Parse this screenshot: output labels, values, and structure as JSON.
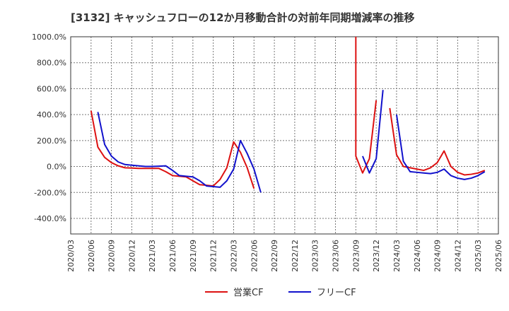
{
  "chart_data": {
    "type": "line",
    "title": "[3132]  キャッシュフローの12か月移動合計の対前年同期増減率の推移",
    "xlabel": "",
    "ylabel": "",
    "ylim": [
      -520,
      1000
    ],
    "yticks": [
      1000,
      800,
      600,
      400,
      200,
      0,
      -200,
      -400
    ],
    "ytick_labels": [
      "1000.0%",
      "800.0%",
      "600.0%",
      "400.0%",
      "200.0%",
      "0.0%",
      "-200.0%",
      "-400.0%"
    ],
    "xticks": [
      "2020/03",
      "2020/06",
      "2020/09",
      "2020/12",
      "2021/03",
      "2021/06",
      "2021/09",
      "2021/12",
      "2022/03",
      "2022/06",
      "2022/09",
      "2022/12",
      "2023/03",
      "2023/06",
      "2023/09",
      "2023/12",
      "2024/03",
      "2024/06",
      "2024/09",
      "2024/12",
      "2025/03",
      "2025/06"
    ],
    "grid": true,
    "legend_position": "bottom-center",
    "series": [
      {
        "name": "営業CF",
        "color": "#dd1111",
        "points": [
          [
            3,
            430
          ],
          [
            4,
            150
          ],
          [
            5,
            70
          ],
          [
            6,
            30
          ],
          [
            7,
            5
          ],
          [
            8,
            -10
          ],
          [
            9,
            -12
          ],
          [
            10,
            -15
          ],
          [
            11,
            -15
          ],
          [
            12,
            -15
          ],
          [
            13,
            -15
          ],
          [
            14,
            -40
          ],
          [
            15,
            -70
          ],
          [
            16,
            -75
          ],
          [
            17,
            -80
          ],
          [
            18,
            -110
          ],
          [
            19,
            -140
          ],
          [
            20,
            -145
          ],
          [
            21,
            -150
          ],
          [
            22,
            -100
          ],
          [
            23,
            -10
          ],
          [
            24,
            190
          ],
          [
            25,
            110
          ],
          [
            26,
            -10
          ],
          [
            27,
            -170
          ],
          null,
          [
            42,
            1000
          ],
          [
            42,
            80
          ],
          [
            43,
            -50
          ],
          [
            44,
            60
          ],
          [
            45,
            510
          ],
          null,
          [
            47,
            450
          ],
          [
            48,
            90
          ],
          [
            49,
            0
          ],
          [
            50,
            -10
          ],
          [
            51,
            -20
          ],
          [
            52,
            -30
          ],
          [
            53,
            -10
          ],
          [
            54,
            30
          ],
          [
            55,
            120
          ],
          [
            56,
            0
          ],
          [
            57,
            -45
          ],
          [
            58,
            -65
          ],
          [
            59,
            -60
          ],
          [
            60,
            -50
          ],
          [
            61,
            -30
          ]
        ]
      },
      {
        "name": "フリーCF",
        "color": "#1111cc",
        "points": [
          [
            4,
            420
          ],
          [
            5,
            170
          ],
          [
            6,
            80
          ],
          [
            7,
            35
          ],
          [
            8,
            15
          ],
          [
            9,
            10
          ],
          [
            10,
            5
          ],
          [
            11,
            0
          ],
          [
            12,
            0
          ],
          [
            13,
            2
          ],
          [
            14,
            5
          ],
          [
            15,
            -30
          ],
          [
            16,
            -70
          ],
          [
            17,
            -75
          ],
          [
            18,
            -80
          ],
          [
            19,
            -110
          ],
          [
            20,
            -150
          ],
          [
            21,
            -155
          ],
          [
            22,
            -160
          ],
          [
            23,
            -110
          ],
          [
            24,
            -20
          ],
          [
            25,
            200
          ],
          [
            26,
            100
          ],
          [
            27,
            -20
          ],
          [
            28,
            -200
          ],
          null,
          [
            43,
            80
          ],
          [
            44,
            -50
          ],
          [
            45,
            60
          ],
          [
            46,
            590
          ],
          null,
          [
            48,
            400
          ],
          [
            49,
            40
          ],
          [
            50,
            -40
          ],
          [
            51,
            -45
          ],
          [
            52,
            -50
          ],
          [
            53,
            -55
          ],
          [
            54,
            -45
          ],
          [
            55,
            -20
          ],
          [
            56,
            -70
          ],
          [
            57,
            -90
          ],
          [
            58,
            -100
          ],
          [
            59,
            -90
          ],
          [
            60,
            -70
          ],
          [
            61,
            -40
          ]
        ]
      }
    ]
  }
}
